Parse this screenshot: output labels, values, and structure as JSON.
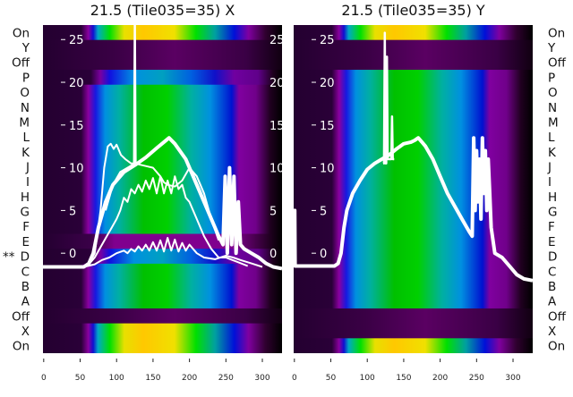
{
  "chart_data": [
    {
      "type": "heatmap",
      "title": "21.5 (Tile035=35) X",
      "xlim": [
        -1,
        327
      ],
      "ylim": [
        -11.7,
        26.7
      ],
      "xticks": [
        0,
        50,
        100,
        150,
        200,
        250,
        300
      ],
      "yticks": [
        0,
        5,
        10,
        15,
        20,
        25
      ],
      "row_labels": [
        "On",
        "Y",
        "Off",
        "P",
        "O",
        "N",
        "M",
        "L",
        "K",
        "J",
        "I",
        "H",
        "G",
        "F",
        "E",
        "D",
        "C",
        "B",
        "A",
        "Off",
        "X",
        "On"
      ],
      "row_intensity": [
        "bright",
        "dark",
        "dark",
        "dim",
        "mid",
        "mid",
        "mid",
        "mid",
        "mid",
        "mid",
        "mid",
        "mid",
        "mid",
        "mid",
        "darkpurple",
        "dim",
        "mid",
        "mid",
        "mid",
        "dark",
        "bright",
        "bright"
      ],
      "marked_row": {
        "label": "D",
        "marker": "**"
      },
      "row_label_side": "left",
      "series": [
        {
          "name": "main-trace",
          "width": 4,
          "x": [
            -1,
            55,
            62,
            68,
            75,
            85,
            95,
            110,
            125,
            140,
            155,
            165,
            172,
            180,
            195,
            210,
            225,
            240,
            246,
            249,
            252,
            255,
            258,
            261,
            264,
            267,
            270,
            275,
            285,
            295,
            305,
            315,
            327
          ],
          "y": [
            -1.6,
            -1.6,
            -1.2,
            0,
            3,
            6,
            8,
            9.5,
            10.3,
            11.2,
            12.3,
            13,
            13.5,
            12.8,
            11,
            8,
            5,
            2,
            1,
            9,
            0,
            10,
            1,
            9,
            0,
            6,
            1,
            0.5,
            0,
            -0.5,
            -1.2,
            -1.6,
            -1.8
          ]
        },
        {
          "name": "spike-trace",
          "width": 2.5,
          "x": [
            123,
            124,
            125,
            126,
            127
          ],
          "y": [
            10.5,
            10.5,
            27,
            10.5,
            10.5
          ]
        },
        {
          "name": "low-wiggle-trace",
          "width": 2,
          "x": [
            55,
            70,
            80,
            90,
            100,
            110,
            115,
            120,
            125,
            130,
            135,
            140,
            145,
            150,
            155,
            160,
            165,
            170,
            175,
            180,
            185,
            190,
            195,
            200,
            210,
            220,
            235,
            250,
            260,
            270,
            285,
            300
          ],
          "y": [
            -1.6,
            -1.3,
            -0.8,
            -0.5,
            0,
            0.3,
            0,
            0.5,
            0.2,
            0.8,
            0.3,
            1,
            0.3,
            1.3,
            0.3,
            1.5,
            0.2,
            1.8,
            0.3,
            1.6,
            0.2,
            1.2,
            0.3,
            1,
            0,
            -0.5,
            -0.7,
            -0.3,
            -0.5,
            -0.8,
            -1.2,
            -1.6
          ]
        },
        {
          "name": "mid-wiggle-trace",
          "width": 2,
          "x": [
            62,
            70,
            80,
            90,
            100,
            105,
            110,
            115,
            120,
            125,
            130,
            135,
            140,
            145,
            150,
            155,
            160,
            165,
            170,
            175,
            180,
            185,
            190,
            195,
            200,
            210,
            220,
            230,
            240,
            250,
            265,
            280
          ],
          "y": [
            -1.3,
            -0.5,
            1,
            2.5,
            4,
            5,
            6.5,
            6,
            7.5,
            7,
            8,
            7.2,
            8.5,
            7.5,
            8.8,
            7,
            9,
            7,
            8.5,
            7,
            9,
            7.5,
            8,
            6.5,
            6,
            4,
            2,
            0.5,
            -0.5,
            -0.5,
            -1,
            -1.5
          ]
        },
        {
          "name": "hump-trace",
          "width": 2,
          "x": [
            85,
            95,
            105,
            115,
            125,
            140,
            150,
            160,
            165,
            170,
            180,
            190,
            200,
            210,
            220,
            230,
            240
          ],
          "y": [
            5,
            8,
            9.5,
            10,
            10.5,
            10.2,
            10,
            9,
            8.3,
            8,
            7.8,
            8.5,
            10,
            9,
            7,
            4,
            1.5
          ]
        },
        {
          "name": "early-peak-trace",
          "width": 2,
          "x": [
            62,
            70,
            78,
            83,
            88,
            92,
            96,
            100,
            106,
            112,
            120,
            126
          ],
          "y": [
            -1.3,
            0,
            5,
            10,
            12.5,
            12.8,
            12.2,
            12.7,
            11.5,
            11,
            10.5,
            10.5
          ]
        }
      ]
    },
    {
      "type": "heatmap",
      "title": "21.5 (Tile035=35) Y",
      "xlim": [
        -1,
        327
      ],
      "ylim": [
        -11.7,
        26.7
      ],
      "xticks": [
        0,
        50,
        100,
        150,
        200,
        250,
        300
      ],
      "yticks": [
        0,
        5,
        10,
        15,
        20,
        25
      ],
      "row_labels": [
        "On",
        "Y",
        "Off",
        "P",
        "O",
        "N",
        "M",
        "L",
        "K",
        "J",
        "I",
        "H",
        "G",
        "F",
        "E",
        "D",
        "C",
        "B",
        "A",
        "Off",
        "X",
        "On"
      ],
      "row_intensity": [
        "bright",
        "dark",
        "dark",
        "mid",
        "mid",
        "mid",
        "mid",
        "mid",
        "mid",
        "mid",
        "mid",
        "mid",
        "mid",
        "mid",
        "mid",
        "mid",
        "mid",
        "mid",
        "mid",
        "dark",
        "dark",
        "bright"
      ],
      "row_label_side": "right",
      "series": [
        {
          "name": "main-trace",
          "width": 4,
          "x": [
            -1,
            0.5,
            1,
            55,
            60,
            64,
            68,
            72,
            80,
            90,
            100,
            110,
            120,
            130,
            140,
            150,
            160,
            165,
            170,
            175,
            180,
            190,
            200,
            210,
            220,
            230,
            240,
            244,
            246,
            248,
            250,
            252,
            254,
            256,
            258,
            260,
            262,
            264,
            266,
            268,
            270,
            275,
            285,
            295,
            305,
            315,
            327
          ],
          "y": [
            -1.5,
            5,
            -1.5,
            -1.5,
            -1.2,
            0,
            3,
            5,
            7,
            8.5,
            9.8,
            10.5,
            11,
            11.5,
            12.2,
            12.8,
            13,
            13.2,
            13.5,
            13,
            12.5,
            11,
            9,
            7,
            5.5,
            4,
            2.5,
            2,
            13.5,
            5,
            12,
            6,
            11,
            4,
            13.5,
            7,
            12,
            5,
            11,
            7,
            3,
            0,
            -0.5,
            -1.5,
            -2.5,
            -3,
            -3.2
          ]
        },
        {
          "name": "spike-trace",
          "width": 2.5,
          "x": [
            122,
            123,
            124,
            125,
            126,
            127,
            128,
            129,
            130,
            133,
            134,
            135,
            136,
            137
          ],
          "y": [
            10.5,
            10.5,
            25.8,
            10.5,
            10.5,
            23,
            11,
            11,
            11,
            11,
            16,
            11,
            11,
            11
          ]
        }
      ]
    }
  ],
  "colors": {
    "line": "#ffffff",
    "dark": "#2a0035",
    "background": "#ffffff"
  }
}
